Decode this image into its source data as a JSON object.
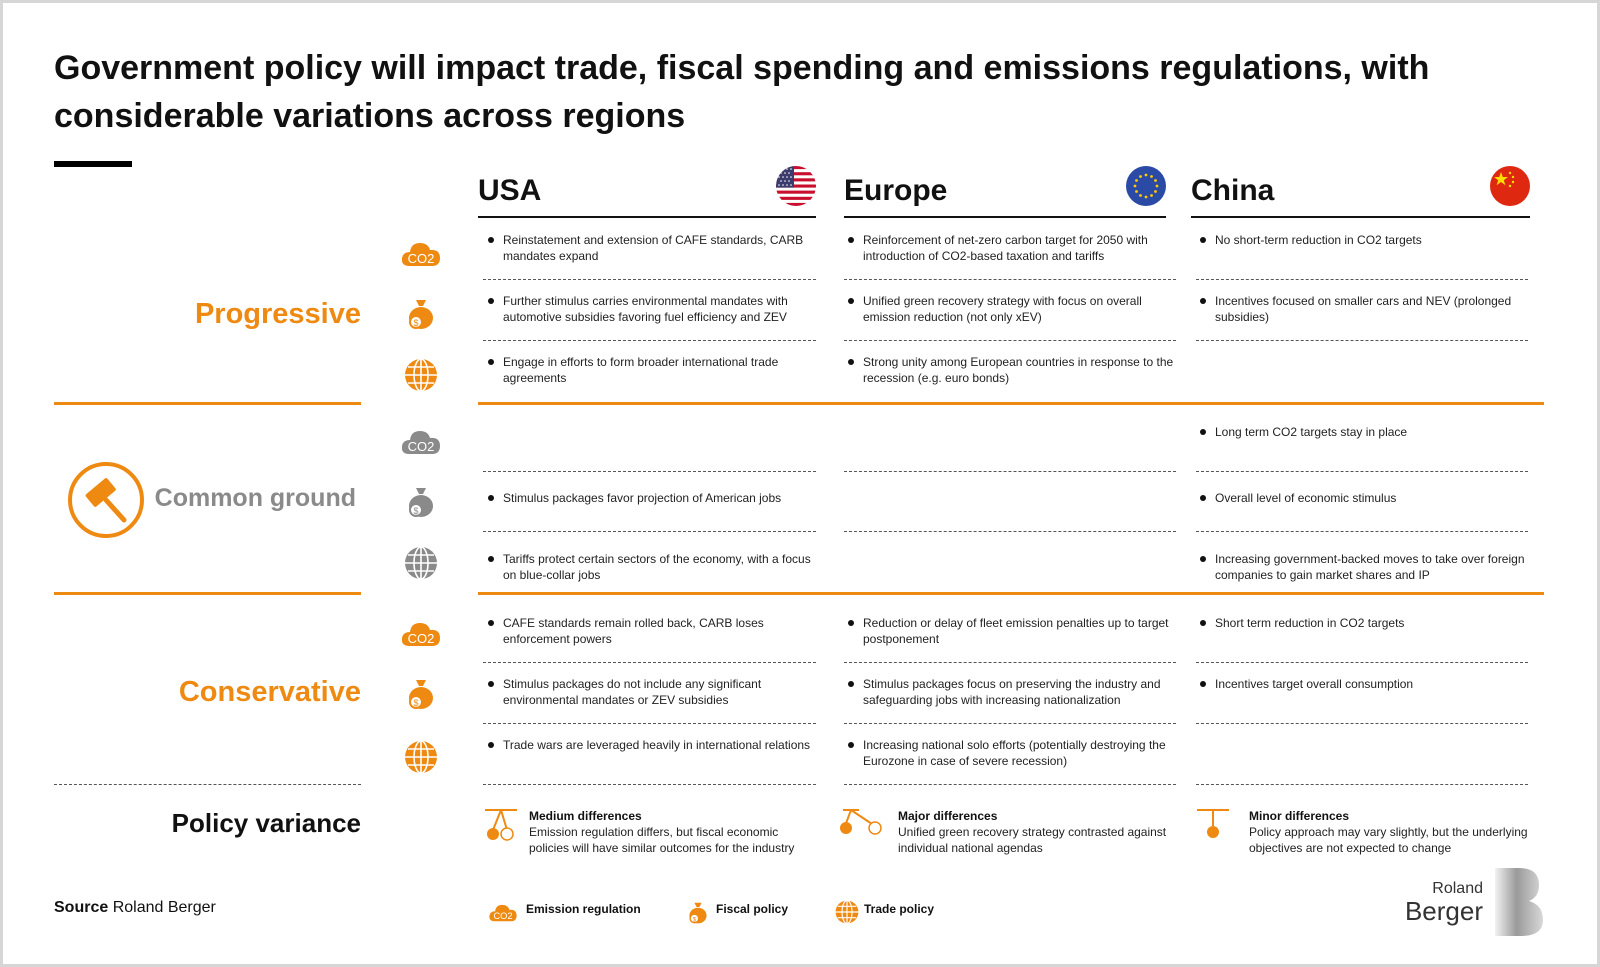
{
  "title": "Government policy will impact trade, fiscal spending and emissions regulations, with considerable variations across regions",
  "regions": [
    {
      "name": "USA",
      "flag": "us-flag-icon"
    },
    {
      "name": "Europe",
      "flag": "eu-flag-icon"
    },
    {
      "name": "China",
      "flag": "china-flag-icon"
    }
  ],
  "categories": {
    "progressive": "Progressive",
    "common": "Common ground",
    "conservative": "Conservative",
    "variance": "Policy variance"
  },
  "progressive": {
    "usa": [
      "Reinstatement and extension of CAFE standards, CARB mandates expand",
      "Further stimulus carries environmental mandates with automotive subsidies favoring fuel efficiency and ZEV",
      "Engage in efforts to form broader international trade agreements"
    ],
    "europe": [
      "Reinforcement of net-zero carbon target for 2050 with introduction of CO2-based taxation and tariffs",
      "Unified green recovery strategy with focus on overall emission reduction (not only xEV)",
      "Strong unity among European countries in response to the recession (e.g. euro bonds)"
    ],
    "china": [
      "No short-term reduction in CO2 targets",
      "Incentives focused on smaller cars and NEV (prolonged subsidies)",
      ""
    ]
  },
  "common": {
    "usa": [
      "",
      "Stimulus packages favor projection of American jobs",
      "Tariffs protect certain sectors of the economy, with a focus on blue-collar jobs"
    ],
    "europe": [
      "",
      "",
      ""
    ],
    "china": [
      "Long term CO2 targets stay in place",
      "Overall level of economic stimulus",
      "Increasing government-backed moves to take over foreign companies to gain market shares and IP"
    ]
  },
  "conservative": {
    "usa": [
      "CAFE standards remain rolled back, CARB loses enforcement powers",
      "Stimulus packages do not include any significant environmental mandates or ZEV subsidies",
      "Trade wars are leveraged heavily in international relations"
    ],
    "europe": [
      "Reduction or delay of fleet emission penalties up to target postponement",
      "Stimulus packages focus on preserving the industry and safeguarding jobs with increasing nationalization",
      "Increasing national solo efforts (potentially destroying the Eurozone in case of severe recession)"
    ],
    "china": [
      "Short term reduction in CO2 targets",
      "Incentives target overall consumption",
      ""
    ]
  },
  "variance": {
    "usa": {
      "title": "Medium differences",
      "text": "Emission regulation differs, but fiscal economic policies will have similar outcomes for the industry"
    },
    "europe": {
      "title": "Major differences",
      "text": "Unified green recovery strategy contrasted against individual national agendas"
    },
    "china": {
      "title": "Minor differences",
      "text": "Policy approach may vary slightly, but the underlying objectives are not expected to change"
    }
  },
  "source": {
    "label": "Source",
    "value": "Roland Berger"
  },
  "legend": {
    "emission": "Emission regulation",
    "fiscal": "Fiscal policy",
    "trade": "Trade policy"
  },
  "logo": {
    "line1": "Roland",
    "line2": "Berger"
  },
  "co2_text": "CO2",
  "colors": {
    "accent": "#ee8a12",
    "grey": "#8a8a8a",
    "text": "#111111"
  }
}
